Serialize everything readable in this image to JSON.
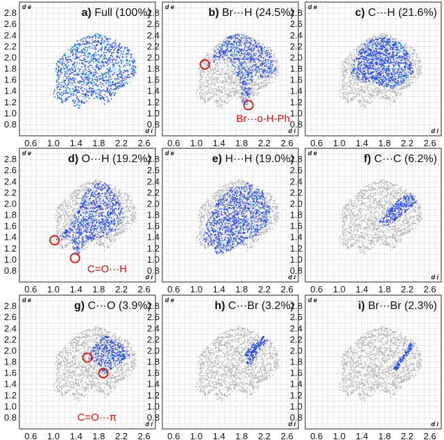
{
  "plot_axes": {
    "x_label": "d i",
    "y_label": "d e",
    "x_ticks": [
      "0.6",
      "1.0",
      "1.4",
      "1.8",
      "2.2",
      "2.6"
    ],
    "y_ticks": [
      "2.8",
      "2.6",
      "2.4",
      "2.2",
      "2.0",
      "1.8",
      "1.6",
      "1.4",
      "1.2",
      "1.0",
      "0.8"
    ]
  },
  "colors": {
    "reference": "#b4b4b4",
    "contact": "#1a3cff",
    "contact_dense": "#18c8f0",
    "marker": "#ff0000"
  },
  "chart_data": [
    {
      "type": "scatter",
      "panel": "a",
      "letter": "a)",
      "title": "Full (100%)",
      "xlim": [
        0.4,
        2.8
      ],
      "ylim": [
        0.6,
        3.0
      ],
      "highlight": "full",
      "markers": [],
      "annotation": ""
    },
    {
      "type": "scatter",
      "panel": "b",
      "letter": "b)",
      "title": "Br···H (24.5%)",
      "xlim": [
        0.4,
        2.8
      ],
      "ylim": [
        0.6,
        3.0
      ],
      "highlight": "br_h",
      "markers": [
        {
          "x": 1.15,
          "y": 1.88
        },
        {
          "x": 1.92,
          "y": 1.15
        }
      ],
      "annotation": "Br···o-H-Ph"
    },
    {
      "type": "scatter",
      "panel": "c",
      "letter": "c)",
      "title": "C···H (21.6%)",
      "xlim": [
        0.4,
        2.8
      ],
      "ylim": [
        0.6,
        3.0
      ],
      "highlight": "c_h",
      "markers": [],
      "annotation": ""
    },
    {
      "type": "scatter",
      "panel": "d",
      "letter": "d)",
      "title": "O···H (19.2%)",
      "xlim": [
        0.4,
        2.8
      ],
      "ylim": [
        0.6,
        3.0
      ],
      "highlight": "o_h",
      "markers": [
        {
          "x": 1.02,
          "y": 1.35
        },
        {
          "x": 1.38,
          "y": 1.03
        }
      ],
      "annotation": "C=O···H"
    },
    {
      "type": "scatter",
      "panel": "e",
      "letter": "e)",
      "title": "H···H (19.0%)",
      "xlim": [
        0.4,
        2.8
      ],
      "ylim": [
        0.6,
        3.0
      ],
      "highlight": "h_h",
      "markers": [],
      "annotation": ""
    },
    {
      "type": "scatter",
      "panel": "f",
      "letter": "f)",
      "title": "C···C (6.2%)",
      "xlim": [
        0.4,
        2.8
      ],
      "ylim": [
        0.6,
        3.0
      ],
      "highlight": "c_c",
      "markers": [],
      "annotation": ""
    },
    {
      "type": "scatter",
      "panel": "g",
      "letter": "g)",
      "title": "C···O (3.9%)",
      "xlim": [
        0.4,
        2.8
      ],
      "ylim": [
        0.6,
        3.0
      ],
      "highlight": "c_o",
      "markers": [
        {
          "x": 1.6,
          "y": 1.88
        },
        {
          "x": 1.88,
          "y": 1.6
        }
      ],
      "annotation": "C=O···π"
    },
    {
      "type": "scatter",
      "panel": "h",
      "letter": "h)",
      "title": "C···Br (3.2%)",
      "xlim": [
        0.4,
        2.8
      ],
      "ylim": [
        0.6,
        3.0
      ],
      "highlight": "c_br",
      "markers": [],
      "annotation": ""
    },
    {
      "type": "scatter",
      "panel": "i",
      "letter": "i)",
      "title": "Br···Br (2.3%)",
      "xlim": [
        0.4,
        2.8
      ],
      "ylim": [
        0.6,
        3.0
      ],
      "highlight": "br_br",
      "markers": [],
      "annotation": ""
    }
  ]
}
